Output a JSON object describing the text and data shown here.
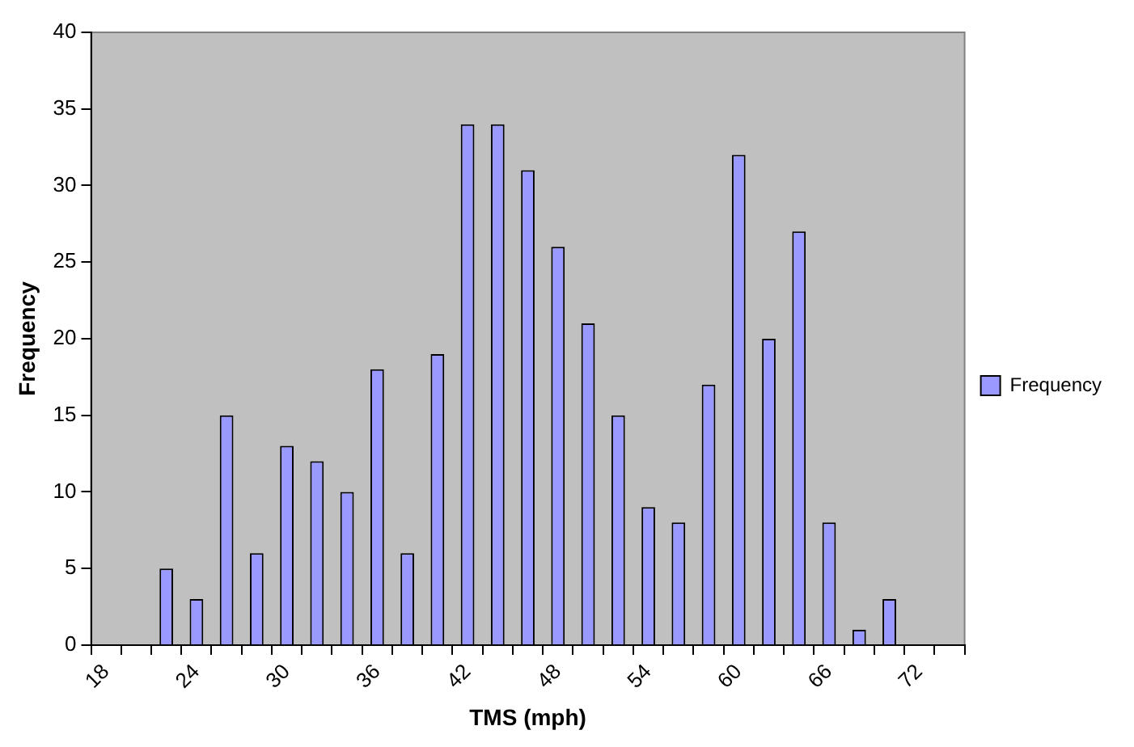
{
  "chart_data": {
    "type": "bar",
    "xlabel": "TMS (mph)",
    "ylabel": "Frequency",
    "categories": [
      "18",
      null,
      null,
      "24",
      null,
      null,
      "30",
      null,
      null,
      "36",
      null,
      null,
      "42",
      null,
      null,
      "48",
      null,
      null,
      "54",
      null,
      null,
      "60",
      null,
      null,
      "66",
      null,
      null,
      "72",
      null
    ],
    "series": [
      {
        "name": "Frequency",
        "color": "#9999ff",
        "values": [
          0,
          0,
          5,
          3,
          15,
          6,
          13,
          12,
          10,
          18,
          6,
          19,
          34,
          34,
          31,
          26,
          21,
          15,
          9,
          8,
          17,
          32,
          20,
          27,
          8,
          1,
          3,
          0,
          0
        ]
      }
    ],
    "ylim": [
      0,
      40
    ],
    "yticks": [
      0,
      5,
      10,
      15,
      20,
      25,
      30,
      35,
      40
    ],
    "grid": false,
    "legend": "right"
  }
}
